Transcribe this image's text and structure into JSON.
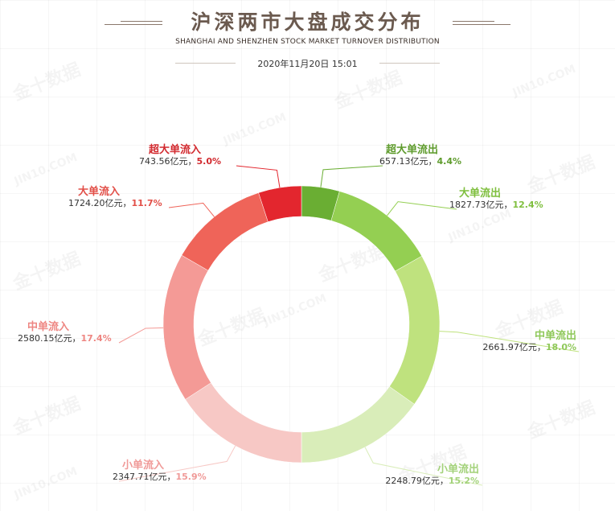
{
  "header": {
    "title": "沪深两市大盘成交分布",
    "subtitle": "SHANGHAI AND SHENZHEN STOCK MARKET TURNOVER DISTRIBUTION",
    "timestamp": "2020年11月20日 15:01"
  },
  "watermark": {
    "text_cn": "金十数据",
    "text_en": "JIN10.COM"
  },
  "chart_data": {
    "type": "pie",
    "subtype": "donut",
    "title": "沪深两市大盘成交分布",
    "subtitle": "SHANGHAI AND SHENZHEN STOCK MARKET TURNOVER DISTRIBUTION",
    "value_unit": "亿元",
    "slices": [
      {
        "name": "超大单流出",
        "value": 657.13,
        "value_label": "657.13亿元",
        "percent_label": "4.4%",
        "color": "#6aae33",
        "text_color": "#5e9b2c"
      },
      {
        "name": "大单流出",
        "value": 1827.73,
        "value_label": "1827.73亿元",
        "percent_label": "12.4%",
        "color": "#94cf52",
        "text_color": "#7fbf3e"
      },
      {
        "name": "中单流出",
        "value": 2661.97,
        "value_label": "2661.97亿元",
        "percent_label": "18.0%",
        "color": "#bfe27e",
        "text_color": "#8fc85a"
      },
      {
        "name": "小单流出",
        "value": 2248.79,
        "value_label": "2248.79亿元",
        "percent_label": "15.2%",
        "color": "#d9edb9",
        "text_color": "#a3d27a"
      },
      {
        "name": "小单流入",
        "value": 2347.71,
        "value_label": "2347.71亿元",
        "percent_label": "15.9%",
        "color": "#f7c8c5",
        "text_color": "#f09a98"
      },
      {
        "name": "中单流入",
        "value": 2580.15,
        "value_label": "2580.15亿元",
        "percent_label": "17.4%",
        "color": "#f49a96",
        "text_color": "#ee8682"
      },
      {
        "name": "大单流入",
        "value": 1724.2,
        "value_label": "1724.20亿元",
        "percent_label": "11.7%",
        "color": "#ef6459",
        "text_color": "#e24f48"
      },
      {
        "name": "超大单流入",
        "value": 743.56,
        "value_label": "743.56亿元",
        "percent_label": "5.0%",
        "color": "#e3262e",
        "text_color": "#d22a2f"
      }
    ],
    "start_angle": "12 o'clock",
    "direction": "clockwise",
    "legend": "none"
  }
}
